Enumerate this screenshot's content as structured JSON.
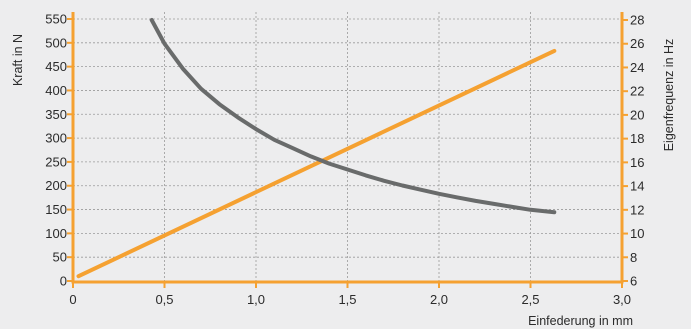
{
  "chart_data": {
    "type": "line",
    "x_axis": {
      "label": "Einfederung in mm",
      "range": [
        0,
        3.0
      ],
      "ticks": [
        0,
        0.5,
        1.0,
        1.5,
        2.0,
        2.5,
        3.0
      ],
      "tick_labels": [
        "0",
        "0,5",
        "1,0",
        "1,5",
        "2,0",
        "2,5",
        "3,0"
      ]
    },
    "y_left": {
      "label": "Kraft in N",
      "range": [
        0,
        550
      ],
      "ticks": [
        0,
        50,
        100,
        150,
        200,
        250,
        300,
        350,
        400,
        450,
        500,
        550
      ],
      "tick_labels": [
        "0",
        "50",
        "100",
        "150",
        "200",
        "250",
        "300",
        "350",
        "400",
        "450",
        "500",
        "550"
      ]
    },
    "y_right": {
      "label": "Eigenfrequenz in Hz",
      "range": [
        6,
        28
      ],
      "ticks": [
        6,
        8,
        10,
        12,
        14,
        16,
        18,
        20,
        22,
        24,
        26,
        28
      ],
      "tick_labels": [
        "6",
        "8",
        "10",
        "12",
        "14",
        "16",
        "18",
        "20",
        "22",
        "24",
        "26",
        "28"
      ]
    },
    "grid": true,
    "series": [
      {
        "axis": "left",
        "color": "#f5a131",
        "points": [
          [
            0.03,
            10
          ],
          [
            2.63,
            483
          ]
        ]
      },
      {
        "axis": "right",
        "color": "#696b6b",
        "points": [
          [
            0.43,
            28.0
          ],
          [
            0.5,
            26.0
          ],
          [
            0.6,
            23.9
          ],
          [
            0.7,
            22.2
          ],
          [
            0.8,
            20.9
          ],
          [
            0.9,
            19.8
          ],
          [
            1.0,
            18.8
          ],
          [
            1.1,
            17.9
          ],
          [
            1.2,
            17.2
          ],
          [
            1.3,
            16.5
          ],
          [
            1.4,
            15.9
          ],
          [
            1.5,
            15.4
          ],
          [
            1.6,
            14.9
          ],
          [
            1.7,
            14.45
          ],
          [
            1.8,
            14.05
          ],
          [
            1.9,
            13.7
          ],
          [
            2.0,
            13.35
          ],
          [
            2.1,
            13.05
          ],
          [
            2.2,
            12.75
          ],
          [
            2.3,
            12.5
          ],
          [
            2.4,
            12.25
          ],
          [
            2.5,
            12.0
          ],
          [
            2.63,
            11.8
          ]
        ]
      }
    ]
  },
  "colors": {
    "background": "#ededee",
    "axis_accent": "#f5a131",
    "grid": "#9a9a9a",
    "text": "#2b2b2b"
  }
}
